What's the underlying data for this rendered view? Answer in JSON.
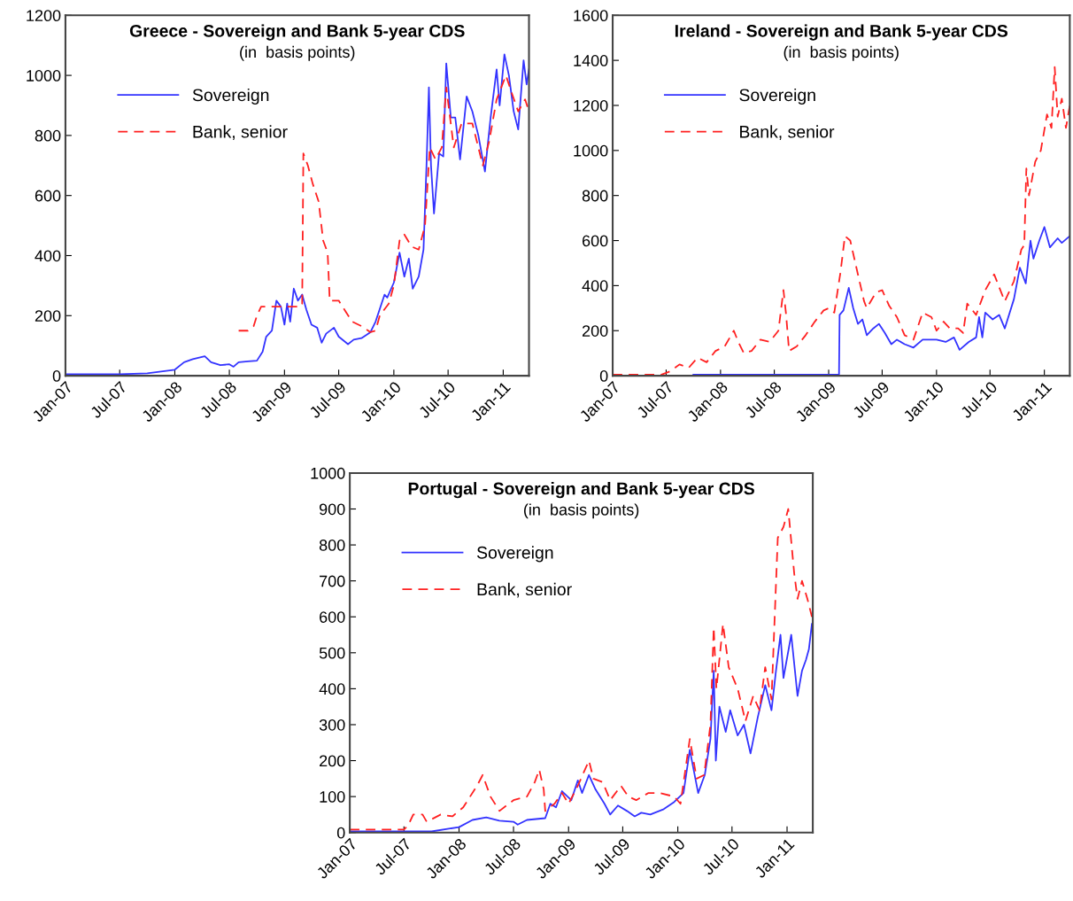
{
  "chart_data": [
    {
      "type": "line",
      "title": "Greece - Sovereign and Bank 5-year CDS",
      "subtitle": "(in  basis points)",
      "legend": "top left",
      "xlim": [
        "2007-01-01",
        "2011-03-28"
      ],
      "xticks": [
        {
          "value": "2007-01-01",
          "label": "Jan-07"
        },
        {
          "value": "2007-07-01",
          "label": "Jul-07"
        },
        {
          "value": "2008-01-01",
          "label": "Jan-08"
        },
        {
          "value": "2008-07-01",
          "label": "Jul-08"
        },
        {
          "value": "2009-01-01",
          "label": "Jan-09"
        },
        {
          "value": "2009-07-01",
          "label": "Jul-09"
        },
        {
          "value": "2010-01-01",
          "label": "Jan-10"
        },
        {
          "value": "2010-07-01",
          "label": "Jul-10"
        },
        {
          "value": "2011-01-01",
          "label": "Jan-11"
        }
      ],
      "ylim": [
        0,
        1200
      ],
      "yticks": [
        0,
        200,
        400,
        600,
        800,
        1000,
        1200
      ],
      "series": [
        {
          "name": "Sovereign",
          "color": "#3333ff",
          "line_style": "solid",
          "x": [
            "2007-01-01",
            "2007-07-01",
            "2007-10-01",
            "2008-01-01",
            "2008-02-01",
            "2008-03-01",
            "2008-04-10",
            "2008-05-01",
            "2008-06-01",
            "2008-07-01",
            "2008-07-15",
            "2008-08-01",
            "2008-09-01",
            "2008-10-01",
            "2008-10-20",
            "2008-11-01",
            "2008-11-20",
            "2008-12-05",
            "2008-12-20",
            "2009-01-01",
            "2009-01-10",
            "2009-01-20",
            "2009-02-01",
            "2009-02-15",
            "2009-03-01",
            "2009-03-15",
            "2009-04-01",
            "2009-04-20",
            "2009-05-05",
            "2009-05-20",
            "2009-06-15",
            "2009-07-01",
            "2009-08-01",
            "2009-08-20",
            "2009-09-15",
            "2009-10-15",
            "2009-11-01",
            "2009-12-01",
            "2009-12-10",
            "2010-01-01",
            "2010-01-20",
            "2010-02-05",
            "2010-02-20",
            "2010-03-05",
            "2010-03-25",
            "2010-04-10",
            "2010-04-20",
            "2010-04-28",
            "2010-05-05",
            "2010-05-15",
            "2010-06-01",
            "2010-06-15",
            "2010-06-25",
            "2010-07-10",
            "2010-07-25",
            "2010-08-10",
            "2010-09-01",
            "2010-09-20",
            "2010-10-10",
            "2010-11-01",
            "2010-11-20",
            "2010-12-10",
            "2010-12-20",
            "2011-01-05",
            "2011-01-20",
            "2011-02-05",
            "2011-02-20",
            "2011-03-10",
            "2011-03-20",
            "2011-03-28"
          ],
          "values": [
            5,
            5,
            8,
            20,
            45,
            55,
            65,
            45,
            35,
            38,
            30,
            45,
            48,
            50,
            80,
            130,
            150,
            250,
            230,
            170,
            240,
            180,
            290,
            250,
            270,
            220,
            170,
            160,
            110,
            140,
            160,
            130,
            105,
            120,
            125,
            145,
            180,
            270,
            260,
            310,
            410,
            330,
            390,
            290,
            330,
            420,
            700,
            960,
            700,
            540,
            740,
            730,
            1040,
            860,
            860,
            720,
            930,
            880,
            800,
            680,
            860,
            1020,
            900,
            1070,
            1000,
            880,
            820,
            1050,
            970,
            1020
          ]
        },
        {
          "name": "Bank, senior",
          "color": "#ff2020",
          "line_style": "dashed",
          "x": [
            "2008-08-01",
            "2008-09-01",
            "2008-09-20",
            "2008-10-01",
            "2008-10-15",
            "2009-02-25",
            "2009-03-01",
            "2009-03-05",
            "2009-03-20",
            "2009-04-05",
            "2009-04-25",
            "2009-05-10",
            "2009-05-25",
            "2009-06-01",
            "2009-07-01",
            "2009-07-20",
            "2009-08-15",
            "2009-09-15",
            "2009-10-15",
            "2009-11-01",
            "2009-11-15",
            "2009-12-15",
            "2010-01-01",
            "2010-01-20",
            "2010-02-05",
            "2010-03-01",
            "2010-03-25",
            "2010-04-15",
            "2010-05-01",
            "2010-05-20",
            "2010-06-10",
            "2010-06-25",
            "2010-07-20",
            "2010-08-15",
            "2010-09-20",
            "2010-10-25",
            "2010-11-15",
            "2010-12-10",
            "2011-01-10",
            "2011-01-30",
            "2011-02-20",
            "2011-03-15",
            "2011-03-28"
          ],
          "values": [
            150,
            150,
            165,
            200,
            230,
            230,
            240,
            740,
            700,
            640,
            580,
            450,
            410,
            250,
            250,
            220,
            180,
            165,
            145,
            150,
            200,
            240,
            300,
            450,
            470,
            430,
            420,
            500,
            760,
            720,
            760,
            960,
            760,
            840,
            840,
            700,
            780,
            920,
            1000,
            940,
            880,
            920,
            880
          ]
        }
      ]
    },
    {
      "type": "line",
      "title": "Ireland - Sovereign and Bank 5-year CDS",
      "subtitle": "(in  basis points)",
      "legend": "top left",
      "xlim": [
        "2007-01-01",
        "2011-03-28"
      ],
      "xticks": [
        {
          "value": "2007-01-01",
          "label": "Jan-07"
        },
        {
          "value": "2007-07-01",
          "label": "Jul-07"
        },
        {
          "value": "2008-01-01",
          "label": "Jan-08"
        },
        {
          "value": "2008-07-01",
          "label": "Jul-08"
        },
        {
          "value": "2009-01-01",
          "label": "Jan-09"
        },
        {
          "value": "2009-07-01",
          "label": "Jul-09"
        },
        {
          "value": "2010-01-01",
          "label": "Jan-10"
        },
        {
          "value": "2010-07-01",
          "label": "Jul-10"
        },
        {
          "value": "2011-01-01",
          "label": "Jan-11"
        }
      ],
      "ylim": [
        0,
        1600
      ],
      "yticks": [
        0,
        200,
        400,
        600,
        800,
        1000,
        1200,
        1400,
        1600
      ],
      "series": [
        {
          "name": "Sovereign",
          "color": "#3333ff",
          "line_style": "solid",
          "x": [
            "2007-10-01",
            "2009-02-05",
            "2009-02-07",
            "2009-02-20",
            "2009-03-10",
            "2009-03-25",
            "2009-04-10",
            "2009-04-25",
            "2009-05-10",
            "2009-06-01",
            "2009-06-20",
            "2009-07-10",
            "2009-08-01",
            "2009-08-20",
            "2009-09-15",
            "2009-10-15",
            "2009-11-15",
            "2010-01-01",
            "2010-02-01",
            "2010-03-01",
            "2010-03-20",
            "2010-04-20",
            "2010-05-15",
            "2010-05-25",
            "2010-06-05",
            "2010-06-15",
            "2010-07-10",
            "2010-08-01",
            "2010-08-20",
            "2010-09-20",
            "2010-10-10",
            "2010-10-30",
            "2010-11-15",
            "2010-11-25",
            "2010-12-15",
            "2011-01-01",
            "2011-01-20",
            "2011-02-15",
            "2011-03-01",
            "2011-03-28"
          ],
          "values": [
            5,
            5,
            270,
            290,
            390,
            300,
            230,
            250,
            180,
            210,
            230,
            190,
            140,
            160,
            140,
            125,
            160,
            160,
            150,
            170,
            115,
            150,
            170,
            260,
            170,
            280,
            250,
            270,
            210,
            340,
            480,
            410,
            600,
            520,
            600,
            660,
            570,
            610,
            590,
            620
          ]
        },
        {
          "name": "Bank, senior",
          "color": "#ff2020",
          "line_style": "dashed",
          "x": [
            "2007-01-01",
            "2007-06-15",
            "2007-07-15",
            "2007-08-15",
            "2007-09-15",
            "2007-10-15",
            "2007-11-15",
            "2007-12-15",
            "2008-01-15",
            "2008-02-15",
            "2008-03-01",
            "2008-03-20",
            "2008-04-15",
            "2008-05-15",
            "2008-06-15",
            "2008-07-15",
            "2008-08-01",
            "2008-08-10",
            "2008-08-20",
            "2008-09-15",
            "2008-10-15",
            "2008-11-15",
            "2008-12-15",
            "2009-01-01",
            "2009-01-20",
            "2009-02-10",
            "2009-02-25",
            "2009-03-15",
            "2009-04-10",
            "2009-05-01",
            "2009-05-10",
            "2009-06-10",
            "2009-07-01",
            "2009-07-25",
            "2009-08-20",
            "2009-09-15",
            "2009-10-15",
            "2009-11-15",
            "2009-12-15",
            "2010-01-01",
            "2010-01-25",
            "2010-02-15",
            "2010-03-15",
            "2010-04-01",
            "2010-04-15",
            "2010-05-15",
            "2010-06-15",
            "2010-07-15",
            "2010-08-20",
            "2010-09-20",
            "2010-10-15",
            "2010-10-25",
            "2010-11-01",
            "2010-11-10",
            "2010-12-01",
            "2010-12-20",
            "2011-01-10",
            "2011-01-25",
            "2011-02-05",
            "2011-02-15",
            "2011-03-01",
            "2011-03-15",
            "2011-03-28"
          ],
          "values": [
            5,
            5,
            20,
            50,
            35,
            80,
            60,
            110,
            130,
            200,
            150,
            100,
            110,
            160,
            150,
            200,
            380,
            270,
            110,
            130,
            180,
            240,
            290,
            300,
            280,
            460,
            620,
            600,
            450,
            330,
            300,
            370,
            380,
            310,
            260,
            180,
            160,
            280,
            260,
            200,
            240,
            210,
            210,
            190,
            320,
            270,
            380,
            450,
            330,
            420,
            560,
            580,
            920,
            800,
            950,
            1000,
            1160,
            1100,
            1370,
            1150,
            1230,
            1100,
            1200
          ]
        }
      ]
    },
    {
      "type": "line",
      "title": "Portugal - Sovereign and Bank 5-year CDS",
      "subtitle": "(in  basis points)",
      "legend": "top left",
      "xlim": [
        "2007-01-01",
        "2011-03-28"
      ],
      "xticks": [
        {
          "value": "2007-01-01",
          "label": "Jan-07"
        },
        {
          "value": "2007-07-01",
          "label": "Jul-07"
        },
        {
          "value": "2008-01-01",
          "label": "Jan-08"
        },
        {
          "value": "2008-07-01",
          "label": "Jul-08"
        },
        {
          "value": "2009-01-01",
          "label": "Jan-09"
        },
        {
          "value": "2009-07-01",
          "label": "Jul-09"
        },
        {
          "value": "2010-01-01",
          "label": "Jan-10"
        },
        {
          "value": "2010-07-01",
          "label": "Jul-10"
        },
        {
          "value": "2011-01-01",
          "label": "Jan-11"
        }
      ],
      "ylim": [
        0,
        1000
      ],
      "yticks": [
        0,
        100,
        200,
        300,
        400,
        500,
        600,
        700,
        800,
        900,
        1000
      ],
      "series": [
        {
          "name": "Sovereign",
          "color": "#3333ff",
          "line_style": "solid",
          "x": [
            "2007-01-01",
            "2007-10-01",
            "2008-01-01",
            "2008-02-15",
            "2008-04-01",
            "2008-05-15",
            "2008-07-01",
            "2008-07-15",
            "2008-08-15",
            "2008-10-15",
            "2008-11-01",
            "2008-11-20",
            "2008-12-10",
            "2009-01-10",
            "2009-02-01",
            "2009-02-15",
            "2009-03-10",
            "2009-04-01",
            "2009-05-01",
            "2009-05-20",
            "2009-06-15",
            "2009-07-15",
            "2009-08-10",
            "2009-09-01",
            "2009-10-01",
            "2009-11-15",
            "2009-12-20",
            "2010-01-20",
            "2010-02-10",
            "2010-03-10",
            "2010-04-01",
            "2010-04-20",
            "2010-05-01",
            "2010-05-08",
            "2010-05-20",
            "2010-06-10",
            "2010-06-25",
            "2010-07-20",
            "2010-08-10",
            "2010-09-01",
            "2010-09-25",
            "2010-10-20",
            "2010-11-10",
            "2010-11-25",
            "2010-12-10",
            "2010-12-20",
            "2011-01-15",
            "2011-02-05",
            "2011-02-20",
            "2011-03-05",
            "2011-03-15",
            "2011-03-25"
          ],
          "values": [
            3,
            3,
            15,
            35,
            42,
            33,
            30,
            22,
            35,
            40,
            80,
            70,
            115,
            90,
            145,
            110,
            160,
            120,
            80,
            50,
            75,
            60,
            45,
            55,
            50,
            65,
            85,
            110,
            230,
            110,
            160,
            260,
            450,
            200,
            350,
            280,
            340,
            270,
            300,
            220,
            320,
            410,
            340,
            450,
            550,
            430,
            550,
            380,
            450,
            480,
            510,
            580
          ]
        },
        {
          "name": "Bank, senior",
          "color": "#ff2020",
          "line_style": "dashed",
          "x": [
            "2007-01-01",
            "2007-07-01",
            "2007-07-15",
            "2007-08-01",
            "2007-09-01",
            "2007-09-15",
            "2007-11-01",
            "2007-12-10",
            "2008-01-15",
            "2008-03-01",
            "2008-03-20",
            "2008-04-15",
            "2008-05-15",
            "2008-07-01",
            "2008-08-15",
            "2008-09-10",
            "2008-09-25",
            "2008-10-10",
            "2008-10-15",
            "2008-11-15",
            "2008-12-10",
            "2009-01-01",
            "2009-02-01",
            "2009-03-10",
            "2009-03-25",
            "2009-04-25",
            "2009-05-20",
            "2009-06-25",
            "2009-07-20",
            "2009-08-15",
            "2009-09-25",
            "2009-11-01",
            "2009-12-20",
            "2010-01-10",
            "2010-02-10",
            "2010-03-05",
            "2010-03-30",
            "2010-04-20",
            "2010-05-01",
            "2010-05-10",
            "2010-06-01",
            "2010-06-20",
            "2010-07-20",
            "2010-08-15",
            "2010-09-10",
            "2010-10-01",
            "2010-10-20",
            "2010-11-10",
            "2010-12-01",
            "2010-12-20",
            "2011-01-05",
            "2011-01-25",
            "2011-02-05",
            "2011-02-20",
            "2011-03-10",
            "2011-03-25"
          ],
          "values": [
            8,
            8,
            20,
            50,
            50,
            30,
            50,
            45,
            70,
            130,
            160,
            100,
            60,
            90,
            100,
            140,
            175,
            120,
            60,
            80,
            110,
            80,
            130,
            200,
            150,
            140,
            90,
            130,
            100,
            90,
            110,
            110,
            100,
            80,
            260,
            150,
            160,
            300,
            570,
            400,
            580,
            460,
            400,
            310,
            380,
            340,
            460,
            370,
            820,
            850,
            900,
            720,
            650,
            700,
            650,
            600
          ]
        }
      ]
    }
  ]
}
